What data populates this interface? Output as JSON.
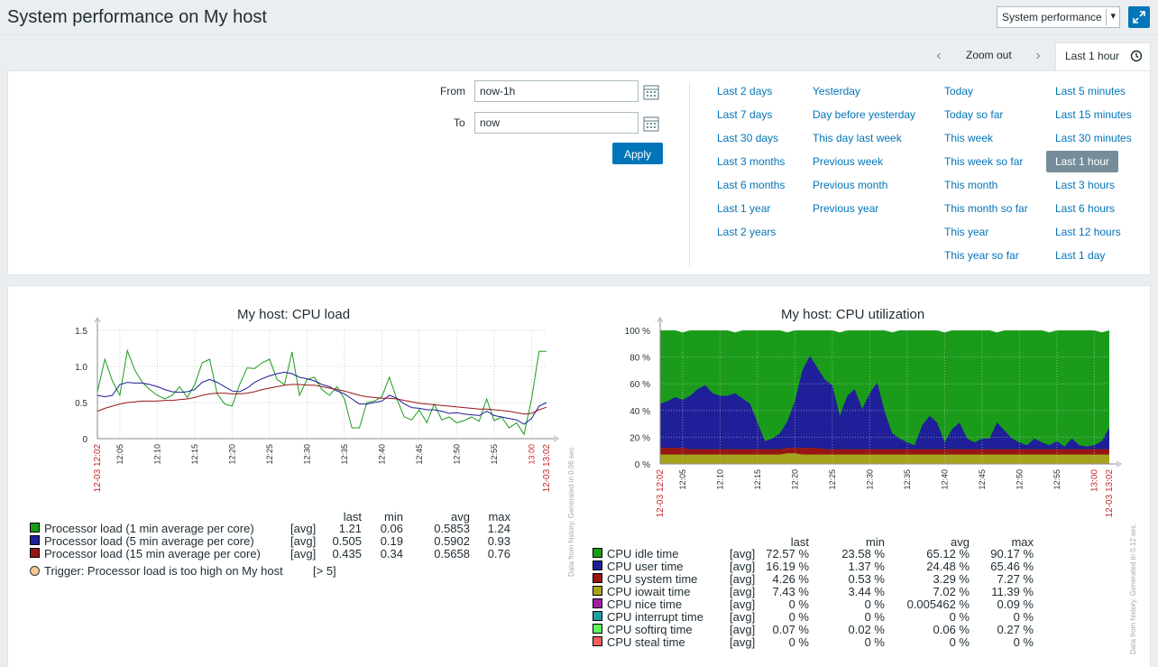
{
  "header": {
    "title": "System performance on My host",
    "page_select": "System performance"
  },
  "zoom": {
    "zoom_out": "Zoom out",
    "period_tab": "Last 1 hour"
  },
  "filter": {
    "from_label": "From",
    "from_value": "now-1h",
    "to_label": "To",
    "to_value": "now",
    "apply": "Apply",
    "quick_col1": [
      "Last 2 days",
      "Last 7 days",
      "Last 30 days",
      "Last 3 months",
      "Last 6 months",
      "Last 1 year",
      "Last 2 years"
    ],
    "quick_col2": [
      "Yesterday",
      "Day before yesterday",
      "This day last week",
      "Previous week",
      "Previous month",
      "Previous year"
    ],
    "quick_col3": [
      "Today",
      "Today so far",
      "This week",
      "This week so far",
      "This month",
      "This month so far",
      "This year",
      "This year so far"
    ],
    "quick_col4": [
      "Last 5 minutes",
      "Last 15 minutes",
      "Last 30 minutes",
      "Last 1 hour",
      "Last 3 hours",
      "Last 6 hours",
      "Last 12 hours",
      "Last 1 day"
    ],
    "selected": "Last 1 hour"
  },
  "colors": {
    "accent": "#0275b8",
    "green": "#1a9c1a",
    "blue": "#1f1f99",
    "darkred": "#991515",
    "olive": "#a6a31c",
    "time_red": "#c62828"
  },
  "chart_data": [
    {
      "type": "line",
      "title": "My host: CPU load",
      "x_ticks": [
        "12-03 12:02",
        "12:05",
        "12:10",
        "12:15",
        "12:20",
        "12:25",
        "12:30",
        "12:35",
        "12:40",
        "12:45",
        "12:50",
        "12:55",
        "13:00",
        "12-03 13:02"
      ],
      "y_ticks": [
        "0",
        "0.5",
        "1.0",
        "1.5"
      ],
      "ylim": [
        0,
        1.5
      ],
      "x_range_minutes": [
        0,
        60
      ],
      "series": [
        {
          "name": "Processor load (1 min average per core)",
          "color": "#1a9c1a",
          "values": [
            0.65,
            1.1,
            0.8,
            0.6,
            1.22,
            0.95,
            0.78,
            0.68,
            0.6,
            0.55,
            0.6,
            0.72,
            0.57,
            0.75,
            1.05,
            1.1,
            0.62,
            0.48,
            0.45,
            0.75,
            0.98,
            0.97,
            1.05,
            1.1,
            0.82,
            0.75,
            1.2,
            0.6,
            0.82,
            0.85,
            0.68,
            0.6,
            0.72,
            0.55,
            0.15,
            0.15,
            0.5,
            0.52,
            0.58,
            0.85,
            0.55,
            0.3,
            0.26,
            0.4,
            0.22,
            0.48,
            0.26,
            0.3,
            0.22,
            0.25,
            0.3,
            0.24,
            0.55,
            0.25,
            0.3,
            0.15,
            0.22,
            0.06,
            0.55,
            1.21,
            1.21
          ],
          "legend_last": "1.21",
          "legend_min": "0.06",
          "legend_avg": "0.5853",
          "legend_max": "1.24"
        },
        {
          "name": "Processor load (5 min average per core)",
          "color": "#1f1f99",
          "values": [
            0.6,
            0.58,
            0.6,
            0.75,
            0.78,
            0.77,
            0.77,
            0.75,
            0.72,
            0.68,
            0.65,
            0.64,
            0.65,
            0.68,
            0.78,
            0.82,
            0.78,
            0.72,
            0.66,
            0.65,
            0.7,
            0.78,
            0.83,
            0.87,
            0.9,
            0.92,
            0.9,
            0.85,
            0.83,
            0.8,
            0.75,
            0.72,
            0.66,
            0.62,
            0.55,
            0.48,
            0.48,
            0.5,
            0.52,
            0.6,
            0.56,
            0.48,
            0.43,
            0.42,
            0.4,
            0.4,
            0.38,
            0.35,
            0.36,
            0.34,
            0.33,
            0.32,
            0.38,
            0.32,
            0.3,
            0.28,
            0.26,
            0.2,
            0.28,
            0.45,
            0.5
          ],
          "legend_last": "0.505",
          "legend_min": "0.19",
          "legend_avg": "0.5902",
          "legend_max": "0.93"
        },
        {
          "name": "Processor load (15 min average per core)",
          "color": "#991515",
          "values": [
            0.38,
            0.42,
            0.45,
            0.48,
            0.5,
            0.51,
            0.52,
            0.52,
            0.52,
            0.53,
            0.53,
            0.54,
            0.55,
            0.57,
            0.6,
            0.62,
            0.63,
            0.63,
            0.62,
            0.62,
            0.63,
            0.65,
            0.68,
            0.7,
            0.72,
            0.74,
            0.75,
            0.75,
            0.74,
            0.74,
            0.72,
            0.7,
            0.68,
            0.66,
            0.63,
            0.6,
            0.58,
            0.57,
            0.56,
            0.56,
            0.55,
            0.53,
            0.51,
            0.49,
            0.48,
            0.47,
            0.46,
            0.45,
            0.44,
            0.43,
            0.42,
            0.41,
            0.41,
            0.4,
            0.39,
            0.38,
            0.36,
            0.34,
            0.35,
            0.4,
            0.435
          ],
          "legend_last": "0.435",
          "legend_min": "0.34",
          "legend_avg": "0.5658",
          "legend_max": "0.76"
        }
      ],
      "trigger": {
        "name": "Trigger: Processor load is too high on My host",
        "value": "[> 5]"
      },
      "legend_headers": [
        "last",
        "min",
        "avg",
        "max"
      ],
      "legend_func": "[avg]",
      "side_note": "Data from history. Generated in 0.06 sec."
    },
    {
      "type": "area",
      "title": "My host: CPU utilization",
      "x_ticks": [
        "12-03 12:02",
        "12:05",
        "12:10",
        "12:15",
        "12:20",
        "12:25",
        "12:30",
        "12:35",
        "12:40",
        "12:45",
        "12:50",
        "12:55",
        "13:00",
        "12-03 13:02"
      ],
      "y_ticks": [
        "0 %",
        "20 %",
        "40 %",
        "60 %",
        "80 %",
        "100 %"
      ],
      "ylim": [
        0,
        100
      ],
      "series_stacked": {
        "olive": [
          7,
          7,
          7,
          7,
          7,
          7,
          7,
          7,
          7,
          7,
          7,
          7,
          7,
          7,
          7,
          7,
          7,
          8,
          8,
          7,
          7,
          7,
          7,
          7,
          7,
          7,
          7,
          7,
          7,
          7,
          7,
          7,
          7,
          7,
          7,
          7,
          7,
          7,
          7,
          7,
          7,
          7,
          7,
          7,
          7,
          7,
          7,
          7,
          7,
          7,
          7,
          7,
          7,
          7,
          7,
          7,
          7,
          7,
          7,
          7,
          7
        ],
        "darkred": [
          5,
          5,
          5,
          5,
          4,
          4,
          4,
          4,
          4,
          4,
          4,
          4,
          4,
          4,
          4,
          4,
          4,
          4,
          4,
          5,
          5,
          5,
          4,
          4,
          4,
          4,
          4,
          4,
          4,
          4,
          4,
          4,
          4,
          4,
          4,
          4,
          4,
          4,
          4,
          4,
          4,
          4,
          4,
          4,
          4,
          4,
          4,
          4,
          4,
          4,
          4,
          4,
          4,
          4,
          4,
          4,
          4,
          4,
          4,
          4,
          4
        ],
        "blue": [
          33,
          35,
          38,
          36,
          40,
          45,
          48,
          42,
          40,
          40,
          42,
          38,
          34,
          20,
          6,
          8,
          12,
          20,
          35,
          58,
          69,
          60,
          52,
          48,
          25,
          40,
          45,
          30,
          42,
          50,
          28,
          12,
          8,
          5,
          3,
          18,
          25,
          20,
          5,
          15,
          20,
          8,
          5,
          8,
          8,
          20,
          14,
          8,
          5,
          3,
          8,
          5,
          3,
          6,
          2,
          8,
          3,
          2,
          3,
          6,
          16
        ]
      },
      "legend_headers": [
        "last",
        "min",
        "avg",
        "max"
      ],
      "legend_func": "[avg]",
      "items": [
        {
          "name": "CPU idle time",
          "color": "#1a9c1a",
          "last": "72.57 %",
          "min": "23.58 %",
          "avg": "65.12 %",
          "max": "90.17 %"
        },
        {
          "name": "CPU user time",
          "color": "#1f1f99",
          "last": "16.19 %",
          "min": "1.37 %",
          "avg": "24.48 %",
          "max": "65.46 %"
        },
        {
          "name": "CPU system time",
          "color": "#991515",
          "last": "4.26 %",
          "min": "0.53 %",
          "avg": "3.29 %",
          "max": "7.27 %"
        },
        {
          "name": "CPU iowait time",
          "color": "#a6a31c",
          "last": "7.43 %",
          "min": "3.44 %",
          "avg": "7.02 %",
          "max": "11.39 %"
        },
        {
          "name": "CPU nice time",
          "color": "#a01ba6",
          "last": "0 %",
          "min": "0 %",
          "avg": "0.005462 %",
          "max": "0.09 %"
        },
        {
          "name": "CPU interrupt time",
          "color": "#20a0a6",
          "last": "0 %",
          "min": "0 %",
          "avg": "0 %",
          "max": "0 %"
        },
        {
          "name": "CPU softirq time",
          "color": "#5ff55f",
          "last": "0.07 %",
          "min": "0.02 %",
          "avg": "0.06 %",
          "max": "0.27 %"
        },
        {
          "name": "CPU steal time",
          "color": "#ef5f5f",
          "last": "0 %",
          "min": "0 %",
          "avg": "0 %",
          "max": "0 %"
        }
      ],
      "side_note": "Data from history. Generated in 0.12 sec."
    }
  ]
}
